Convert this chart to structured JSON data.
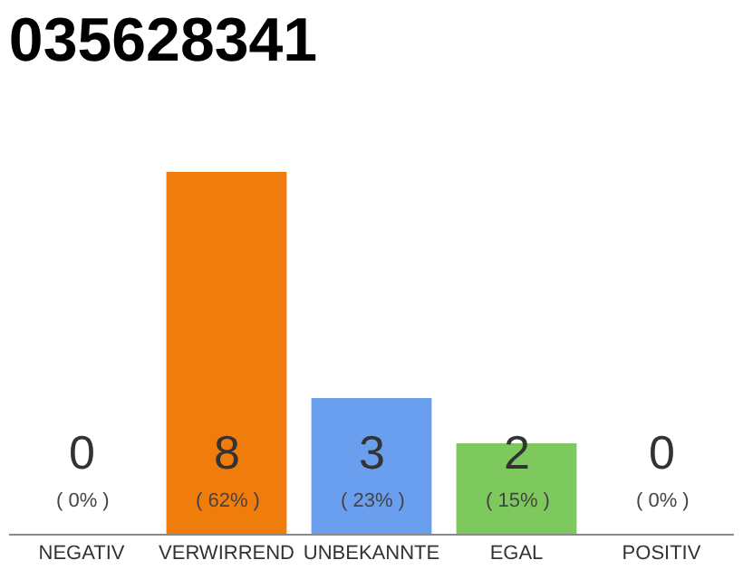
{
  "chart_data": {
    "type": "bar",
    "title": "035628341",
    "categories": [
      "NEGATIV",
      "VERWIRREND",
      "UNBEKANNTE",
      "EGAL",
      "POSITIV"
    ],
    "values": [
      0,
      8,
      3,
      2,
      0
    ],
    "colors": [
      "#f07c0c",
      "#f07c0c",
      "#6a9fef",
      "#7dc95e",
      "#f07c0c"
    ],
    "ylim": [
      0,
      8
    ],
    "data_labels": true,
    "annotations": [
      "( 0% )",
      "( 62% )",
      "( 23% )",
      "( 15% )",
      "( 0% )"
    ]
  }
}
